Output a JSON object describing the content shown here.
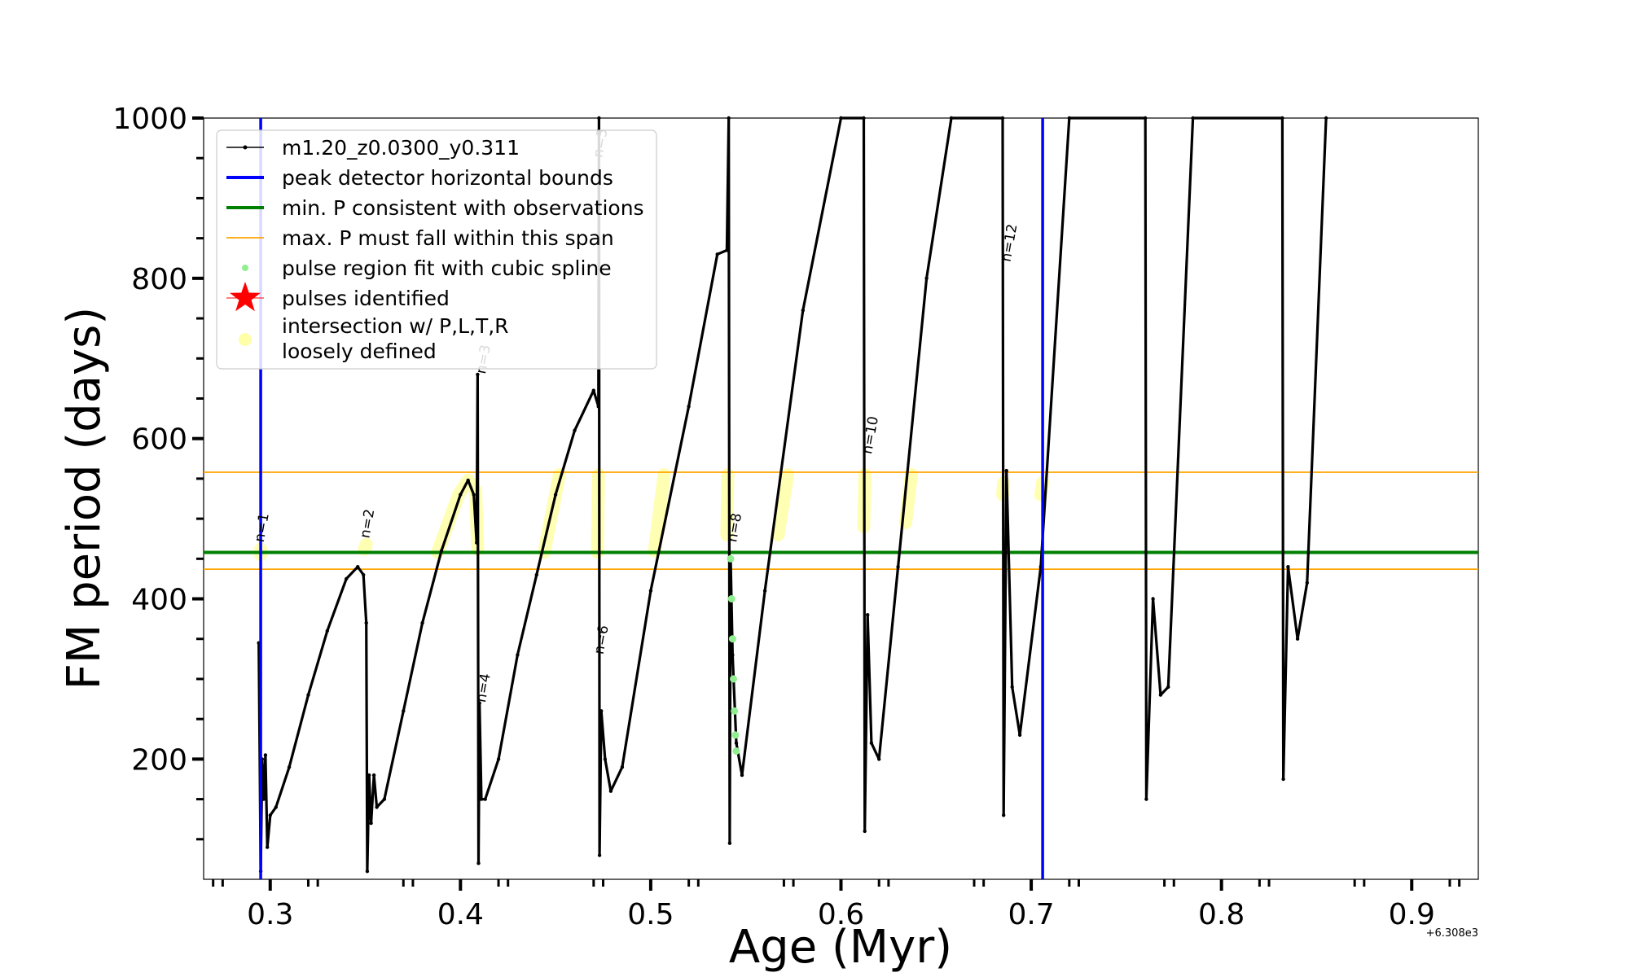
{
  "chart_data": {
    "type": "line",
    "title": "",
    "xlabel": "Age (Myr)",
    "ylabel": "FM period (days)",
    "x_offset_text": "+6.308e3",
    "xlim": [
      0.265,
      0.935
    ],
    "ylim": [
      50,
      1000
    ],
    "xticks": [
      0.3,
      0.4,
      0.5,
      0.6,
      0.7,
      0.8,
      0.9
    ],
    "xtick_labels": [
      "0.3",
      "0.4",
      "0.5",
      "0.6",
      "0.7",
      "0.8",
      "0.9"
    ],
    "yticks": [
      200,
      400,
      600,
      800,
      1000
    ],
    "ytick_labels": [
      "200",
      "400",
      "600",
      "800",
      "1000"
    ],
    "grid": false,
    "legend_position": "top-left",
    "legend": [
      {
        "label": "m1.20_z0.0300_y0.311",
        "style": "line-dot",
        "color": "#000000"
      },
      {
        "label": "peak detector horizontal bounds",
        "style": "line",
        "color": "#0000ff"
      },
      {
        "label": "min. P consistent with observations",
        "style": "line",
        "color": "#008000"
      },
      {
        "label": "max. P must fall within this span",
        "style": "thin-line",
        "color": "#ffa500"
      },
      {
        "label": "pulse region fit with cubic spline",
        "style": "dot",
        "color": "#90ee90"
      },
      {
        "label": "pulses identified",
        "style": "star",
        "color": "#ff0000"
      },
      {
        "label": "intersection w/ P,L,T,R\nloosely defined",
        "style": "circle",
        "color": "#ffffa8"
      }
    ],
    "vertical_lines": {
      "color": "#0000ff",
      "x": [
        0.295,
        0.706
      ]
    },
    "min_period_line": {
      "color": "#008000",
      "y": 458
    },
    "max_period_span": {
      "color": "#ffa500",
      "y": [
        437,
        558
      ]
    },
    "series": [
      {
        "name": "m1.20_z0.0300_y0.311",
        "color": "#000000",
        "points": [
          [
            0.294,
            345
          ],
          [
            0.295,
            60
          ],
          [
            0.2958,
            200
          ],
          [
            0.2965,
            150
          ],
          [
            0.2975,
            205
          ],
          [
            0.2985,
            90
          ],
          [
            0.3,
            130
          ],
          [
            0.303,
            140
          ],
          [
            0.31,
            190
          ],
          [
            0.32,
            280
          ],
          [
            0.33,
            360
          ],
          [
            0.34,
            425
          ],
          [
            0.346,
            440
          ],
          [
            0.349,
            430
          ],
          [
            0.3505,
            370
          ],
          [
            0.351,
            60
          ],
          [
            0.352,
            180
          ],
          [
            0.353,
            120
          ],
          [
            0.3545,
            180
          ],
          [
            0.356,
            140
          ],
          [
            0.36,
            150
          ],
          [
            0.37,
            260
          ],
          [
            0.38,
            370
          ],
          [
            0.39,
            460
          ],
          [
            0.4,
            530
          ],
          [
            0.404,
            548
          ],
          [
            0.407,
            530
          ],
          [
            0.4085,
            470
          ],
          [
            0.409,
            680
          ],
          [
            0.4095,
            70
          ],
          [
            0.41,
            270
          ],
          [
            0.411,
            150
          ],
          [
            0.413,
            150
          ],
          [
            0.42,
            200
          ],
          [
            0.43,
            330
          ],
          [
            0.44,
            430
          ],
          [
            0.45,
            530
          ],
          [
            0.46,
            610
          ],
          [
            0.47,
            660
          ],
          [
            0.4725,
            640
          ],
          [
            0.4728,
            1000
          ],
          [
            0.4731,
            80
          ],
          [
            0.474,
            260
          ],
          [
            0.476,
            200
          ],
          [
            0.479,
            160
          ],
          [
            0.485,
            190
          ],
          [
            0.5,
            410
          ],
          [
            0.52,
            640
          ],
          [
            0.535,
            830
          ],
          [
            0.54,
            835
          ],
          [
            0.541,
            1000
          ],
          [
            0.5415,
            95
          ],
          [
            0.542,
            450
          ],
          [
            0.543,
            330
          ],
          [
            0.545,
            220
          ],
          [
            0.548,
            180
          ],
          [
            0.56,
            410
          ],
          [
            0.58,
            760
          ],
          [
            0.6,
            1000
          ],
          [
            0.612,
            1000
          ],
          [
            0.6125,
            110
          ],
          [
            0.614,
            380
          ],
          [
            0.616,
            220
          ],
          [
            0.62,
            200
          ],
          [
            0.63,
            440
          ],
          [
            0.645,
            800
          ],
          [
            0.658,
            1000
          ],
          [
            0.685,
            1000
          ],
          [
            0.6855,
            130
          ],
          [
            0.687,
            560
          ],
          [
            0.69,
            290
          ],
          [
            0.694,
            230
          ],
          [
            0.705,
            440
          ],
          [
            0.72,
            1000
          ],
          [
            0.76,
            1000
          ],
          [
            0.7605,
            150
          ],
          [
            0.764,
            400
          ],
          [
            0.768,
            280
          ],
          [
            0.772,
            290
          ],
          [
            0.785,
            1000
          ],
          [
            0.832,
            1000
          ],
          [
            0.8325,
            175
          ],
          [
            0.835,
            440
          ],
          [
            0.84,
            350
          ],
          [
            0.845,
            420
          ],
          [
            0.855,
            1000
          ]
        ]
      },
      {
        "name": "pulse region fit with cubic spline",
        "color": "#90ee90",
        "points": [
          [
            0.542,
            450
          ],
          [
            0.5425,
            400
          ],
          [
            0.543,
            350
          ],
          [
            0.5435,
            300
          ],
          [
            0.544,
            260
          ],
          [
            0.5445,
            230
          ],
          [
            0.545,
            210
          ]
        ]
      }
    ],
    "highlight_segments": {
      "color": "#ffff99",
      "segments": [
        [
          [
            0.295,
            455
          ],
          [
            0.295,
            462
          ]
        ],
        [
          [
            0.3495,
            462
          ],
          [
            0.3505,
            468
          ]
        ],
        [
          [
            0.388,
            458
          ],
          [
            0.399,
            530
          ],
          [
            0.404,
            548
          ],
          [
            0.408,
            535
          ],
          [
            0.409,
            462
          ]
        ],
        [
          [
            0.444,
            458
          ],
          [
            0.452,
            555
          ]
        ],
        [
          [
            0.472,
            458
          ],
          [
            0.4725,
            555
          ]
        ],
        [
          [
            0.502,
            460
          ],
          [
            0.507,
            555
          ]
        ],
        [
          [
            0.54,
            480
          ],
          [
            0.5405,
            555
          ]
        ],
        [
          [
            0.567,
            480
          ],
          [
            0.572,
            555
          ]
        ],
        [
          [
            0.612,
            490
          ],
          [
            0.6125,
            555
          ]
        ],
        [
          [
            0.634,
            495
          ],
          [
            0.637,
            555
          ]
        ],
        [
          [
            0.685,
            530
          ],
          [
            0.6855,
            545
          ]
        ],
        [
          [
            0.705,
            530
          ],
          [
            0.706,
            545
          ]
        ]
      ]
    },
    "pulse_labels": [
      {
        "text": "n=1",
        "x": 0.2965,
        "y": 470
      },
      {
        "text": "n=2",
        "x": 0.352,
        "y": 475
      },
      {
        "text": "n=3",
        "x": 0.413,
        "y": 680
      },
      {
        "text": "n=4",
        "x": 0.413,
        "y": 270
      },
      {
        "text": "n=5",
        "x": 0.4745,
        "y": 950
      },
      {
        "text": "n=6",
        "x": 0.475,
        "y": 330
      },
      {
        "text": "n=8",
        "x": 0.545,
        "y": 470
      },
      {
        "text": "n=10",
        "x": 0.616,
        "y": 580
      },
      {
        "text": "n=12",
        "x": 0.689,
        "y": 820
      }
    ]
  }
}
